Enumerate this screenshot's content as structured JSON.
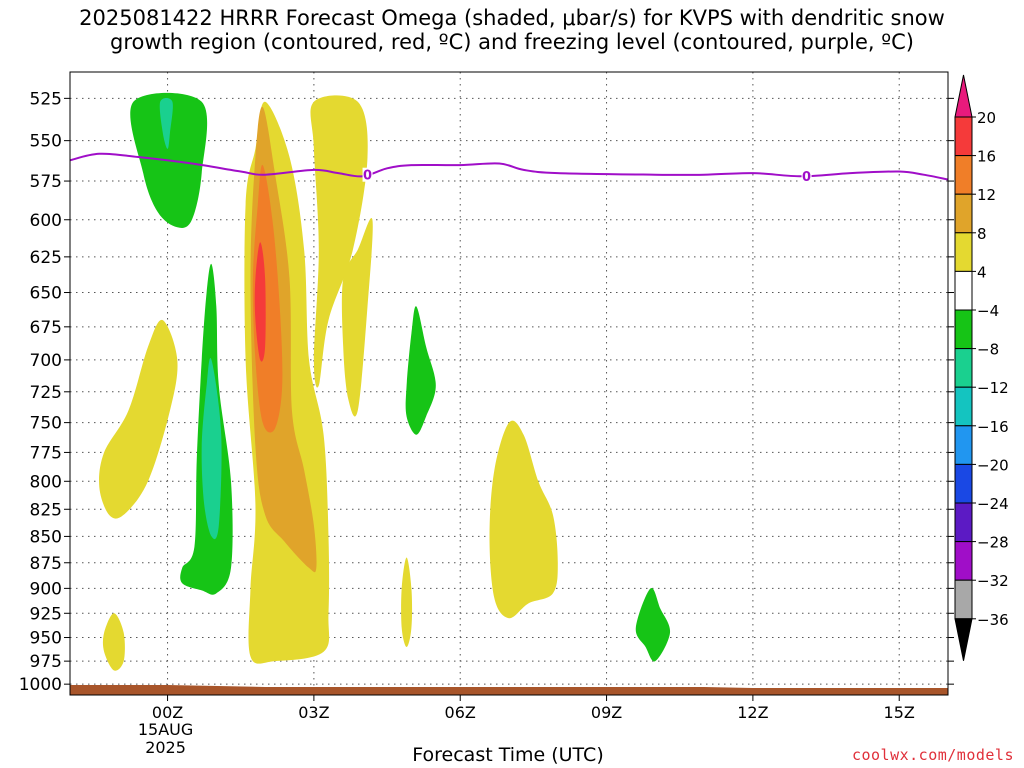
{
  "title": {
    "line1": "2025081422 HRRR Forecast Omega (shaded, μbar/s) for KVPS with dendritic snow",
    "line2": "growth region (contoured, red, ºC) and freezing level (contoured, purple, ºC)"
  },
  "credit": "coolwx.com/models",
  "chart_data": {
    "type": "contour",
    "title": "2025081422 HRRR Forecast Omega (shaded, μbar/s) for KVPS with dendritic snow growth region (contoured, red, ºC) and freezing level (contoured, purple, ºC)",
    "xlabel": "Forecast Time (UTC)",
    "ylabel": "",
    "x_range_hours_from_00Z": [
      -2,
      16
    ],
    "y_ticks": [
      525,
      550,
      575,
      600,
      625,
      650,
      675,
      700,
      725,
      750,
      775,
      800,
      825,
      850,
      875,
      900,
      925,
      950,
      975,
      1000
    ],
    "y_tick_labels": [
      "525",
      "550",
      "575",
      "600",
      "625",
      "650",
      "675",
      "700",
      "725",
      "750",
      "775",
      "800",
      "825",
      "850",
      "875",
      "900",
      "925",
      "950",
      "975",
      "1000"
    ],
    "x_ticks": [
      {
        "hour": 0,
        "label": "00Z",
        "sub1": "15AUG",
        "sub2": "2025"
      },
      {
        "hour": 3,
        "label": "03Z"
      },
      {
        "hour": 6,
        "label": "06Z"
      },
      {
        "hour": 9,
        "label": "09Z"
      },
      {
        "hour": 12,
        "label": "12Z"
      },
      {
        "hour": 15,
        "label": "15Z"
      }
    ],
    "grid": true,
    "colorbar": {
      "levels": [
        20,
        16,
        12,
        8,
        4,
        -4,
        -8,
        -12,
        -16,
        -20,
        -24,
        -28,
        -32,
        -36
      ],
      "labels": [
        "20",
        "16",
        "12",
        "8",
        "4",
        "−4",
        "−8",
        "−12",
        "−16",
        "−20",
        "−24",
        "−28",
        "−32",
        "−36"
      ],
      "colors": [
        "#e81a7c",
        "#f53a3a",
        "#f07e28",
        "#e0a42a",
        "#e4d930",
        "#ffffff",
        "#16c416",
        "#1ad08f",
        "#14c4c0",
        "#2196f0",
        "#1a48e4",
        "#5c1ac4",
        "#a00ec8",
        "#a8a8a8",
        "#000000"
      ]
    },
    "freezing_level": {
      "label": "0",
      "color": "#a00ec8",
      "points": [
        [
          -2,
          562
        ],
        [
          -1.4,
          558
        ],
        [
          -0.6,
          560
        ],
        [
          0.5,
          564
        ],
        [
          1.5,
          569
        ],
        [
          2,
          571
        ],
        [
          3,
          568
        ],
        [
          3.5,
          570
        ],
        [
          4,
          572
        ],
        [
          4.5,
          567
        ],
        [
          5,
          565
        ],
        [
          6,
          565
        ],
        [
          6.8,
          564
        ],
        [
          7.3,
          568
        ],
        [
          8,
          570
        ],
        [
          10,
          571
        ],
        [
          11,
          571
        ],
        [
          12,
          570
        ],
        [
          13,
          572
        ],
        [
          14,
          570
        ],
        [
          15,
          569
        ],
        [
          15.5,
          571
        ],
        [
          16,
          574
        ]
      ],
      "label_positions": [
        4.1,
        13.1
      ]
    },
    "omega_regions": [
      {
        "level": 4,
        "color": "#e4d930",
        "points": [
          [
            1.6,
            590
          ],
          [
            1.8,
            555
          ],
          [
            2,
            527
          ],
          [
            2.5,
            560
          ],
          [
            2.8,
            620
          ],
          [
            2.9,
            700
          ],
          [
            3.2,
            760
          ],
          [
            3.3,
            850
          ],
          [
            3.3,
            925
          ],
          [
            3.2,
            965
          ],
          [
            2.2,
            975
          ],
          [
            1.7,
            970
          ],
          [
            1.7,
            900
          ],
          [
            1.8,
            820
          ],
          [
            1.6,
            700
          ]
        ]
      },
      {
        "level": 4,
        "color": "#e4d930",
        "points": [
          [
            3,
            527
          ],
          [
            3.9,
            527
          ],
          [
            4.1,
            560
          ],
          [
            3.8,
            620
          ],
          [
            3.3,
            670
          ],
          [
            3.1,
            720
          ],
          [
            3.0,
            700
          ],
          [
            3.1,
            620
          ],
          [
            3.0,
            555
          ]
        ]
      },
      {
        "level": 4,
        "color": "#e4d930",
        "points": [
          [
            3.6,
            640
          ],
          [
            3.9,
            620
          ],
          [
            4.2,
            600
          ],
          [
            4.1,
            660
          ],
          [
            3.9,
            740
          ],
          [
            3.7,
            730
          ],
          [
            3.6,
            690
          ]
        ]
      },
      {
        "level": 4,
        "color": "#e4d930",
        "points": [
          [
            -1.3,
            775
          ],
          [
            -0.8,
            740
          ],
          [
            -0.4,
            690
          ],
          [
            -0.1,
            670
          ],
          [
            0.2,
            700
          ],
          [
            0.05,
            740
          ],
          [
            -0.4,
            800
          ],
          [
            -0.9,
            830
          ],
          [
            -1.2,
            830
          ],
          [
            -1.4,
            805
          ]
        ]
      },
      {
        "level": 4,
        "color": "#e4d930",
        "points": [
          [
            -1.3,
            945
          ],
          [
            -1.1,
            925
          ],
          [
            -0.9,
            945
          ],
          [
            -0.9,
            975
          ],
          [
            -1.1,
            985
          ],
          [
            -1.3,
            965
          ]
        ]
      },
      {
        "level": 4,
        "color": "#e4d930",
        "points": [
          [
            6.7,
            790
          ],
          [
            7.0,
            750
          ],
          [
            7.3,
            760
          ],
          [
            7.6,
            800
          ],
          [
            7.9,
            830
          ],
          [
            8.0,
            875
          ],
          [
            7.9,
            905
          ],
          [
            7.4,
            915
          ],
          [
            7.0,
            930
          ],
          [
            6.7,
            910
          ],
          [
            6.6,
            850
          ]
        ]
      },
      {
        "level": 4,
        "color": "#e4d930",
        "points": [
          [
            4.8,
            900
          ],
          [
            4.9,
            870
          ],
          [
            5.0,
            900
          ],
          [
            5.0,
            940
          ],
          [
            4.9,
            960
          ],
          [
            4.8,
            940
          ]
        ]
      },
      {
        "level": 8,
        "color": "#e0a42a",
        "points": [
          [
            1.7,
            640
          ],
          [
            1.8,
            560
          ],
          [
            1.95,
            530
          ],
          [
            2.2,
            570
          ],
          [
            2.5,
            640
          ],
          [
            2.55,
            740
          ],
          [
            2.8,
            790
          ],
          [
            3.0,
            840
          ],
          [
            3.05,
            880
          ],
          [
            2.9,
            880
          ],
          [
            2.4,
            855
          ],
          [
            2.0,
            830
          ],
          [
            1.8,
            770
          ]
        ]
      },
      {
        "level": 12,
        "color": "#f07e28",
        "points": [
          [
            1.75,
            640
          ],
          [
            1.85,
            590
          ],
          [
            1.95,
            565
          ],
          [
            2.15,
            600
          ],
          [
            2.3,
            660
          ],
          [
            2.35,
            720
          ],
          [
            2.2,
            755
          ],
          [
            1.95,
            750
          ],
          [
            1.8,
            700
          ]
        ]
      },
      {
        "level": 16,
        "color": "#f53a3a",
        "points": [
          [
            1.8,
            640
          ],
          [
            1.9,
            615
          ],
          [
            2.0,
            640
          ],
          [
            2.0,
            690
          ],
          [
            1.9,
            700
          ],
          [
            1.8,
            670
          ]
        ]
      },
      {
        "level": -4,
        "color": "#16c416",
        "points": [
          [
            -0.7,
            527
          ],
          [
            0.7,
            527
          ],
          [
            0.7,
            570
          ],
          [
            0.5,
            600
          ],
          [
            0.2,
            605
          ],
          [
            -0.2,
            595
          ],
          [
            -0.5,
            570
          ]
        ]
      },
      {
        "level": -8,
        "color": "#1ad08f",
        "points": [
          [
            -0.15,
            527
          ],
          [
            0.1,
            527
          ],
          [
            0.05,
            545
          ],
          [
            0.0,
            555
          ],
          [
            -0.1,
            545
          ]
        ]
      },
      {
        "level": -4,
        "color": "#16c416",
        "points": [
          [
            0.7,
            700
          ],
          [
            0.8,
            650
          ],
          [
            0.9,
            630
          ],
          [
            1.0,
            660
          ],
          [
            1.05,
            720
          ],
          [
            1.3,
            800
          ],
          [
            1.3,
            880
          ],
          [
            1.0,
            905
          ],
          [
            0.7,
            902
          ],
          [
            0.3,
            895
          ],
          [
            0.3,
            880
          ],
          [
            0.55,
            860
          ],
          [
            0.6,
            780
          ]
        ]
      },
      {
        "level": -8,
        "color": "#1ad08f",
        "points": [
          [
            0.7,
            770
          ],
          [
            0.8,
            720
          ],
          [
            0.9,
            700
          ],
          [
            1.1,
            760
          ],
          [
            1.05,
            840
          ],
          [
            0.9,
            850
          ],
          [
            0.75,
            820
          ]
        ]
      },
      {
        "level": -4,
        "color": "#16c416",
        "points": [
          [
            4.9,
            720
          ],
          [
            5.0,
            680
          ],
          [
            5.1,
            660
          ],
          [
            5.3,
            690
          ],
          [
            5.5,
            720
          ],
          [
            5.3,
            745
          ],
          [
            5.1,
            760
          ],
          [
            4.9,
            745
          ]
        ]
      },
      {
        "level": -4,
        "color": "#16c416",
        "points": [
          [
            9.6,
            940
          ],
          [
            9.9,
            900
          ],
          [
            10.1,
            920
          ],
          [
            10.3,
            945
          ],
          [
            10.0,
            975
          ],
          [
            9.8,
            960
          ]
        ]
      }
    ],
    "surface_fill": {
      "color": "#a8552a"
    }
  }
}
